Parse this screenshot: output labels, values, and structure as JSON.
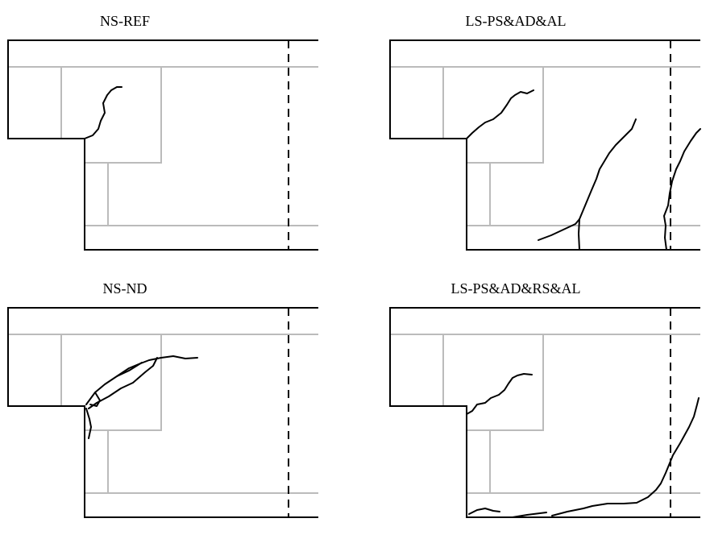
{
  "panels": [
    {
      "title": "NS-REF"
    },
    {
      "title": "LS-PS&AD&AL"
    },
    {
      "title": "NS-ND"
    },
    {
      "title": "LS-PS&AD&RS&AL"
    }
  ]
}
